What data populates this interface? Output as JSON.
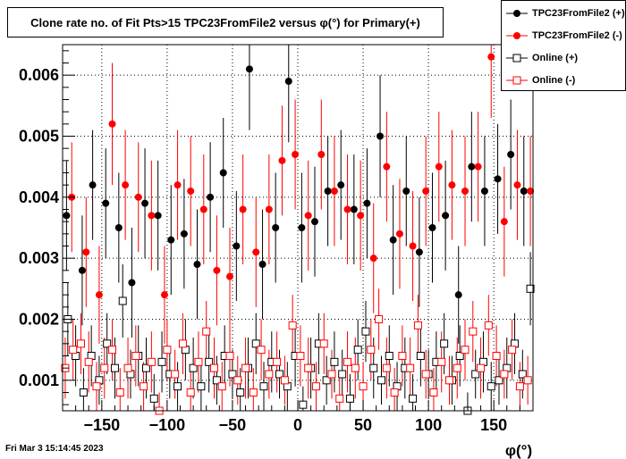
{
  "title": "Clone rate no. of Fit Pts>15 TPC23FromFile2 versus φ(°) for Primary(+)",
  "timestamp": "Fri Mar  3 15:14:45 2023",
  "chart_data": {
    "type": "scatter",
    "title": "Clone rate no. of Fit Pts>15 TPC23FromFile2 versus φ(°) for Primary(+)",
    "xlabel": "φ(°)",
    "ylabel": "",
    "xlim": [
      -180,
      180
    ],
    "ylim": [
      0.0005,
      0.0065
    ],
    "xticks": [
      -150,
      -100,
      -50,
      0,
      50,
      100,
      150
    ],
    "yticks": [
      0.001,
      0.002,
      0.003,
      0.004,
      0.005,
      0.006
    ],
    "grid": true,
    "legend_position": "top-right",
    "series": [
      {
        "name": "TPC23FromFile2 (+)",
        "color": "#000000",
        "marker": "filled-circle",
        "x": [
          -177,
          -165,
          -157,
          -147,
          -137,
          -127,
          -117,
          -107,
          -97,
          -87,
          -77,
          -67,
          -57,
          -47,
          -37,
          -27,
          -17,
          -7,
          3,
          13,
          23,
          33,
          43,
          53,
          63,
          73,
          83,
          93,
          103,
          113,
          123,
          133,
          143,
          153,
          163,
          173
        ],
        "y": [
          0.0037,
          0.0028,
          0.0042,
          0.0039,
          0.0035,
          0.0026,
          0.0039,
          0.0037,
          0.0033,
          0.0034,
          0.0029,
          0.004,
          0.0044,
          0.0032,
          0.0061,
          0.0029,
          0.0035,
          0.0059,
          0.0035,
          0.0036,
          0.0041,
          0.0042,
          0.0038,
          0.0039,
          0.005,
          0.0033,
          0.0041,
          0.0031,
          0.0035,
          0.0037,
          0.0024,
          0.0045,
          0.0041,
          0.0043,
          0.0047,
          0.0041
        ],
        "yerr": [
          0.0009,
          0.0009,
          0.0009,
          0.0009,
          0.0009,
          0.0009,
          0.0009,
          0.0009,
          0.0009,
          0.0009,
          0.0009,
          0.0009,
          0.0009,
          0.0009,
          0.001,
          0.0009,
          0.0009,
          0.001,
          0.0009,
          0.0009,
          0.0009,
          0.0009,
          0.0009,
          0.0009,
          0.001,
          0.0009,
          0.0009,
          0.0009,
          0.0009,
          0.0009,
          0.0008,
          0.0009,
          0.0009,
          0.0009,
          0.0009,
          0.0009
        ]
      },
      {
        "name": "TPC23FromFile2 (-)",
        "color": "#ff0000",
        "marker": "filled-circle",
        "x": [
          -173,
          -162,
          -152,
          -142,
          -132,
          -122,
          -112,
          -102,
          -92,
          -82,
          -72,
          -62,
          -52,
          -42,
          -32,
          -22,
          -12,
          -2,
          8,
          18,
          28,
          38,
          48,
          58,
          68,
          78,
          88,
          98,
          108,
          118,
          128,
          138,
          148,
          158,
          168,
          178
        ],
        "y": [
          0.004,
          0.0031,
          0.0024,
          0.0052,
          0.0042,
          0.004,
          0.0037,
          0.0024,
          0.0042,
          0.0041,
          0.0038,
          0.0028,
          0.0027,
          0.0038,
          0.0031,
          0.0038,
          0.0046,
          0.0047,
          0.0037,
          0.0047,
          0.0041,
          0.0038,
          0.0037,
          0.003,
          0.0045,
          0.0034,
          0.0032,
          0.0041,
          0.0045,
          0.0042,
          0.0041,
          0.0045,
          0.0063,
          0.0036,
          0.0042,
          0.0041
        ],
        "yerr": [
          0.0009,
          0.0009,
          0.0008,
          0.001,
          0.0009,
          0.0009,
          0.0009,
          0.0008,
          0.0009,
          0.0009,
          0.0009,
          0.0009,
          0.0008,
          0.0009,
          0.0009,
          0.0009,
          0.0009,
          0.0009,
          0.0009,
          0.0009,
          0.0009,
          0.0009,
          0.0009,
          0.0009,
          0.0009,
          0.0009,
          0.0009,
          0.0009,
          0.0009,
          0.0009,
          0.0009,
          0.0009,
          0.001,
          0.0009,
          0.0009,
          0.0009
        ]
      },
      {
        "name": "Online (+)",
        "color": "#000000",
        "marker": "open-square",
        "x": [
          -176,
          -170,
          -164,
          -158,
          -152,
          -146,
          -140,
          -134,
          -128,
          -122,
          -116,
          -110,
          -104,
          -98,
          -92,
          -86,
          -80,
          -74,
          -68,
          -62,
          -56,
          -50,
          -44,
          -38,
          -32,
          -26,
          -20,
          -14,
          -8,
          -2,
          4,
          10,
          16,
          22,
          28,
          34,
          40,
          46,
          52,
          58,
          64,
          70,
          76,
          82,
          88,
          94,
          100,
          106,
          112,
          118,
          124,
          130,
          136,
          142,
          148,
          154,
          160,
          166,
          172,
          178
        ],
        "y": [
          0.002,
          0.0014,
          0.0008,
          0.0014,
          0.001,
          0.0016,
          0.0012,
          0.0023,
          0.0011,
          0.0014,
          0.0012,
          0.0007,
          0.0013,
          0.0011,
          0.0009,
          0.0015,
          0.0012,
          0.0009,
          0.0013,
          0.001,
          0.0014,
          0.0011,
          0.0008,
          0.0012,
          0.0016,
          0.0009,
          0.0013,
          0.0011,
          0.0009,
          0.0014,
          0.0006,
          0.0012,
          0.0016,
          0.001,
          0.0013,
          0.0011,
          0.0007,
          0.0015,
          0.0018,
          0.0012,
          0.001,
          0.0014,
          0.0009,
          0.0012,
          0.0007,
          0.0014,
          0.0011,
          0.0013,
          0.0016,
          0.001,
          0.0014,
          0.0005,
          0.0011,
          0.0013,
          0.0009,
          0.001,
          0.0012,
          0.0016,
          0.0011,
          0.0025
        ],
        "yerr": [
          0.0006,
          0.0005,
          0.0004,
          0.0005,
          0.0004,
          0.0005,
          0.0005,
          0.0006,
          0.0004,
          0.0005,
          0.0005,
          0.0004,
          0.0005,
          0.0004,
          0.0004,
          0.0005,
          0.0005,
          0.0004,
          0.0005,
          0.0004,
          0.0005,
          0.0004,
          0.0004,
          0.0005,
          0.0005,
          0.0004,
          0.0005,
          0.0004,
          0.0004,
          0.0005,
          0.0003,
          0.0005,
          0.0005,
          0.0004,
          0.0005,
          0.0004,
          0.0004,
          0.0005,
          0.0005,
          0.0005,
          0.0004,
          0.0005,
          0.0004,
          0.0005,
          0.0004,
          0.0005,
          0.0004,
          0.0005,
          0.0005,
          0.0004,
          0.0005,
          0.0003,
          0.0004,
          0.0005,
          0.0004,
          0.0004,
          0.0005,
          0.0005,
          0.0004,
          0.0006
        ]
      },
      {
        "name": "Online (-)",
        "color": "#ff0000",
        "marker": "open-square",
        "x": [
          -178,
          -172,
          -166,
          -160,
          -154,
          -148,
          -142,
          -136,
          -130,
          -124,
          -118,
          -112,
          -106,
          -100,
          -94,
          -88,
          -82,
          -76,
          -70,
          -64,
          -58,
          -52,
          -46,
          -40,
          -34,
          -28,
          -22,
          -16,
          -10,
          -4,
          2,
          8,
          14,
          20,
          26,
          32,
          38,
          44,
          50,
          56,
          62,
          68,
          74,
          80,
          86,
          92,
          98,
          104,
          110,
          116,
          122,
          128,
          134,
          140,
          146,
          152,
          158,
          164,
          170,
          176
        ],
        "y": [
          0.0012,
          0.0015,
          0.0016,
          0.0013,
          0.0009,
          0.0012,
          0.0015,
          0.0008,
          0.0012,
          0.0014,
          0.0009,
          0.0013,
          0.0005,
          0.0015,
          0.0011,
          0.0016,
          0.0008,
          0.0013,
          0.0018,
          0.0012,
          0.0009,
          0.0014,
          0.001,
          0.0012,
          0.0008,
          0.0015,
          0.0011,
          0.0013,
          0.001,
          0.0019,
          0.0014,
          0.0012,
          0.0009,
          0.0016,
          0.0011,
          0.0007,
          0.0013,
          0.0012,
          0.0009,
          0.0015,
          0.002,
          0.0012,
          0.0008,
          0.0014,
          0.0012,
          0.0019,
          0.0011,
          0.0008,
          0.0013,
          0.001,
          0.0012,
          0.0015,
          0.0018,
          0.0012,
          0.0019,
          0.0014,
          0.0011,
          0.0015,
          0.0009,
          0.001
        ],
        "yerr": [
          0.0005,
          0.0005,
          0.0005,
          0.0005,
          0.0004,
          0.0005,
          0.0005,
          0.0004,
          0.0005,
          0.0005,
          0.0004,
          0.0005,
          0.0003,
          0.0005,
          0.0004,
          0.0005,
          0.0004,
          0.0005,
          0.0005,
          0.0005,
          0.0004,
          0.0005,
          0.0004,
          0.0005,
          0.0004,
          0.0005,
          0.0004,
          0.0005,
          0.0004,
          0.0005,
          0.0005,
          0.0005,
          0.0004,
          0.0005,
          0.0004,
          0.0004,
          0.0005,
          0.0005,
          0.0004,
          0.0005,
          0.0005,
          0.0005,
          0.0004,
          0.0005,
          0.0005,
          0.0005,
          0.0004,
          0.0004,
          0.0005,
          0.0004,
          0.0005,
          0.0005,
          0.0005,
          0.0005,
          0.0005,
          0.0005,
          0.0004,
          0.0005,
          0.0004,
          0.0004
        ]
      }
    ]
  }
}
